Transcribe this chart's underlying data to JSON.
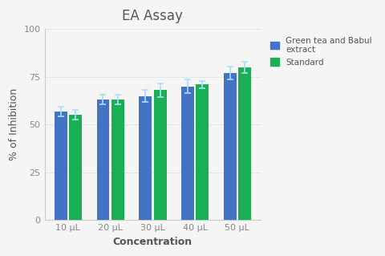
{
  "title": "EA Assay",
  "xlabel": "Concentration",
  "ylabel": "% of Inhibition",
  "categories": [
    "10 μL",
    "20 μL",
    "30 μL",
    "40 μL",
    "50 μL"
  ],
  "blue_values": [
    57,
    63,
    65,
    70,
    77
  ],
  "green_values": [
    55,
    63,
    68,
    71,
    80
  ],
  "blue_errors": [
    2.5,
    2.5,
    3.0,
    3.5,
    3.5
  ],
  "green_errors": [
    2.5,
    2.5,
    3.5,
    2.0,
    3.0
  ],
  "blue_color": "#4472C4",
  "green_color": "#1AAF54",
  "error_color": "#AADDFF",
  "ylim": [
    0,
    100
  ],
  "yticks": [
    0,
    25,
    50,
    75,
    100
  ],
  "bar_width": 0.3,
  "bar_gap": 0.05,
  "legend_labels": [
    "Green tea and Babul\nextract",
    "Standard"
  ],
  "background_color": "#f5f5f5",
  "plot_bg_color": "#f5f5f5",
  "title_fontsize": 12,
  "label_fontsize": 9,
  "tick_fontsize": 8,
  "tick_color": "#888888",
  "spine_color": "#cccccc",
  "text_color": "#555555"
}
